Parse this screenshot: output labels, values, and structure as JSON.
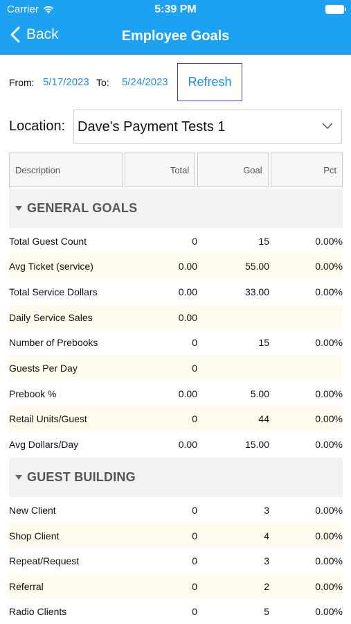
{
  "status": {
    "carrier": "Carrier",
    "time": "5:39 PM"
  },
  "nav": {
    "back_label": "Back",
    "title": "Employee Goals"
  },
  "filters": {
    "from_label": "From:",
    "from_date": "5/17/2023",
    "to_label": "To:",
    "to_date": "5/24/2023",
    "refresh_label": "Refresh"
  },
  "location": {
    "label": "Location:",
    "selected": "Dave's Payment Tests 1"
  },
  "table": {
    "headers": {
      "description": "Description",
      "total": "Total",
      "goal": "Goal",
      "pct": "Pct"
    },
    "sections": [
      {
        "title": "GENERAL GOALS",
        "rows": [
          {
            "description": "Total Guest Count",
            "total": "0",
            "goal": "15",
            "pct": "0.00%"
          },
          {
            "description": "Avg Ticket (service)",
            "total": "0.00",
            "goal": "55.00",
            "pct": "0.00%"
          },
          {
            "description": "Total Service Dollars",
            "total": "0.00",
            "goal": "33.00",
            "pct": "0.00%"
          },
          {
            "description": "Daily Service Sales",
            "total": "0.00",
            "goal": "",
            "pct": ""
          },
          {
            "description": "Number of Prebooks",
            "total": "0",
            "goal": "15",
            "pct": "0.00%"
          },
          {
            "description": "Guests Per Day",
            "total": "0",
            "goal": "",
            "pct": ""
          },
          {
            "description": "Prebook %",
            "total": "0.00",
            "goal": "5.00",
            "pct": "0.00%"
          },
          {
            "description": "Retail Units/Guest",
            "total": "0",
            "goal": "44",
            "pct": "0.00%"
          },
          {
            "description": "Avg Dollars/Day",
            "total": "0.00",
            "goal": "15.00",
            "pct": "0.00%"
          }
        ]
      },
      {
        "title": "GUEST BUILDING",
        "rows": [
          {
            "description": "New Client",
            "total": "0",
            "goal": "3",
            "pct": "0.00%"
          },
          {
            "description": "Shop Client",
            "total": "0",
            "goal": "4",
            "pct": "0.00%"
          },
          {
            "description": "Repeat/Request",
            "total": "0",
            "goal": "3",
            "pct": "0.00%"
          },
          {
            "description": "Referral",
            "total": "0",
            "goal": "2",
            "pct": "0.00%"
          },
          {
            "description": "Radio Clients",
            "total": "0",
            "goal": "5",
            "pct": "0.00%"
          }
        ]
      }
    ]
  },
  "colors": {
    "header_bg": "#1da1f2",
    "link": "#1a8fe6",
    "alt_row": "#fffbef",
    "section_bg": "#f2f2f2"
  },
  "icons": [
    "back-chevron-icon",
    "wifi-icon",
    "battery-icon",
    "dropdown-caret-icon",
    "section-collapse-triangle-icon"
  ]
}
